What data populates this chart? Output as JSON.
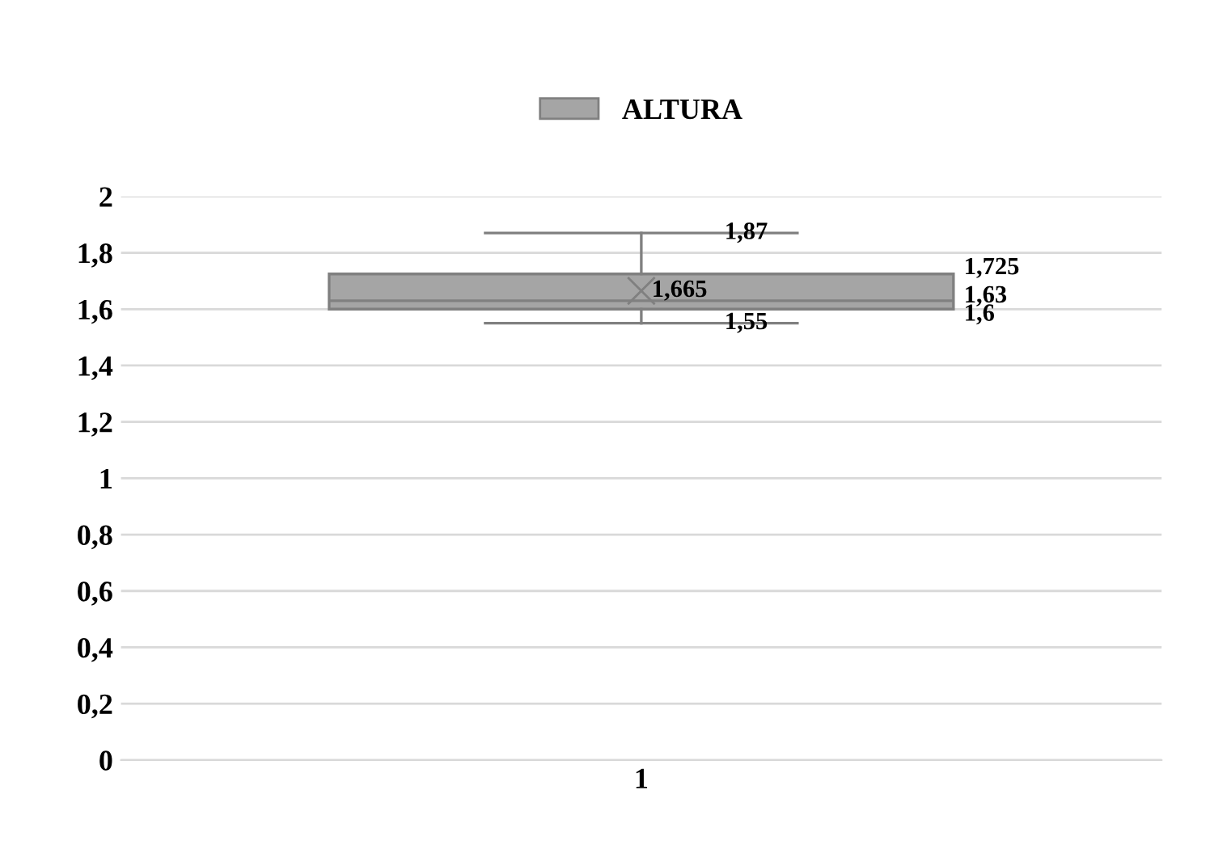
{
  "chart_data": {
    "type": "box",
    "categories": [
      "1"
    ],
    "series": [
      {
        "name": "ALTURA",
        "color": "#a5a5a5",
        "boxes": [
          {
            "low": 1.55,
            "q1": 1.6,
            "median": 1.63,
            "q3": 1.725,
            "high": 1.87,
            "mean": 1.665
          }
        ]
      }
    ],
    "value_labels": [
      "1,55",
      "1,6",
      "1,63",
      "1,725",
      "1,87",
      "1,665"
    ],
    "ylim": [
      0,
      2
    ],
    "yticks": [
      0,
      {
        "value": 0.2,
        "label": "0,2"
      },
      {
        "value": 0.4,
        "label": "0,4"
      },
      {
        "value": 0.6,
        "label": "0,6"
      },
      {
        "value": 0.8,
        "label": "0,8"
      },
      1,
      {
        "value": 1.2,
        "label": "1,2"
      },
      {
        "value": 1.4,
        "label": "1,4"
      },
      {
        "value": 1.6,
        "label": "1,6"
      },
      {
        "value": 1.8,
        "label": "1,8"
      },
      2
    ],
    "grid": "y",
    "legend": "top"
  }
}
